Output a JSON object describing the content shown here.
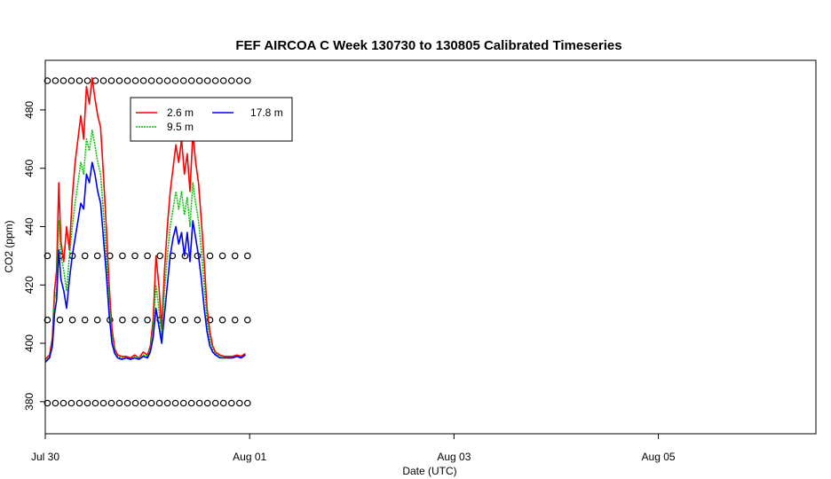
{
  "chart_data": {
    "type": "line",
    "title": "FEF AIRCOA C  Week 130730 to 130805  Calibrated Timeseries",
    "xlabel": "Date (UTC)",
    "ylabel": "CO2 (ppm)",
    "xlim": [
      "2013-07-30T00:00",
      "2013-08-06T13:00"
    ],
    "ylim": [
      369,
      497
    ],
    "x_ticks": [
      {
        "label": "Jul 30",
        "date": "2013-07-30"
      },
      {
        "label": "Aug 01",
        "date": "2013-08-01"
      },
      {
        "label": "Aug 03",
        "date": "2013-08-03"
      },
      {
        "label": "Aug 05",
        "date": "2013-08-05"
      }
    ],
    "y_ticks": [
      380,
      400,
      420,
      440,
      460,
      480
    ],
    "legend_position": "top-left",
    "series": [
      {
        "name": "2.6 m",
        "color": "#ff0000",
        "points": [
          [
            "2013-07-30T00:00",
            394.5
          ],
          [
            "2013-07-30T01:00",
            396
          ],
          [
            "2013-07-30T01:40",
            402
          ],
          [
            "2013-07-30T02:10",
            418
          ],
          [
            "2013-07-30T02:40",
            425
          ],
          [
            "2013-07-30T03:10",
            455
          ],
          [
            "2013-07-30T03:40",
            435
          ],
          [
            "2013-07-30T04:20",
            428
          ],
          [
            "2013-07-30T05:00",
            440
          ],
          [
            "2013-07-30T05:40",
            432
          ],
          [
            "2013-07-30T06:20",
            450
          ],
          [
            "2013-07-30T07:00",
            462
          ],
          [
            "2013-07-30T07:40",
            470
          ],
          [
            "2013-07-30T08:20",
            478
          ],
          [
            "2013-07-30T09:00",
            470
          ],
          [
            "2013-07-30T09:40",
            488
          ],
          [
            "2013-07-30T10:20",
            482
          ],
          [
            "2013-07-30T11:00",
            491
          ],
          [
            "2013-07-30T11:40",
            484
          ],
          [
            "2013-07-30T12:20",
            478
          ],
          [
            "2013-07-30T13:00",
            474
          ],
          [
            "2013-07-30T13:40",
            458
          ],
          [
            "2013-07-30T14:20",
            440
          ],
          [
            "2013-07-30T15:00",
            420
          ],
          [
            "2013-07-30T15:40",
            405
          ],
          [
            "2013-07-30T16:20",
            398
          ],
          [
            "2013-07-30T17:00",
            396
          ],
          [
            "2013-07-30T18:00",
            395.5
          ],
          [
            "2013-07-30T19:00",
            395.5
          ],
          [
            "2013-07-30T20:00",
            395
          ],
          [
            "2013-07-30T21:00",
            396
          ],
          [
            "2013-07-30T22:00",
            395
          ],
          [
            "2013-07-30T23:00",
            397
          ],
          [
            "2013-07-31T00:00",
            396
          ],
          [
            "2013-07-31T00:40",
            399
          ],
          [
            "2013-07-31T01:20",
            408
          ],
          [
            "2013-07-31T02:00",
            430
          ],
          [
            "2013-07-31T02:40",
            420
          ],
          [
            "2013-07-31T03:20",
            405
          ],
          [
            "2013-07-31T04:00",
            425
          ],
          [
            "2013-07-31T04:40",
            440
          ],
          [
            "2013-07-31T05:20",
            452
          ],
          [
            "2013-07-31T06:00",
            460
          ],
          [
            "2013-07-31T06:40",
            468
          ],
          [
            "2013-07-31T07:20",
            462
          ],
          [
            "2013-07-31T08:00",
            470
          ],
          [
            "2013-07-31T08:40",
            458
          ],
          [
            "2013-07-31T09:20",
            465
          ],
          [
            "2013-07-31T10:00",
            452
          ],
          [
            "2013-07-31T10:40",
            472
          ],
          [
            "2013-07-31T11:20",
            462
          ],
          [
            "2013-07-31T12:00",
            455
          ],
          [
            "2013-07-31T12:40",
            442
          ],
          [
            "2013-07-31T13:20",
            428
          ],
          [
            "2013-07-31T14:00",
            412
          ],
          [
            "2013-07-31T14:40",
            404
          ],
          [
            "2013-07-31T15:20",
            399
          ],
          [
            "2013-07-31T16:00",
            397
          ],
          [
            "2013-07-31T17:00",
            396
          ],
          [
            "2013-07-31T18:00",
            395.5
          ],
          [
            "2013-07-31T19:00",
            395.5
          ],
          [
            "2013-07-31T20:00",
            395.5
          ],
          [
            "2013-07-31T21:00",
            396
          ],
          [
            "2013-07-31T22:00",
            395.5
          ],
          [
            "2013-07-31T23:00",
            396.5
          ]
        ]
      },
      {
        "name": "9.5 m",
        "color": "#00c000",
        "points": [
          [
            "2013-07-30T00:00",
            394
          ],
          [
            "2013-07-30T01:00",
            395.5
          ],
          [
            "2013-07-30T01:40",
            400
          ],
          [
            "2013-07-30T02:10",
            415
          ],
          [
            "2013-07-30T02:40",
            418
          ],
          [
            "2013-07-30T03:10",
            442
          ],
          [
            "2013-07-30T03:40",
            430
          ],
          [
            "2013-07-30T04:20",
            425
          ],
          [
            "2013-07-30T05:00",
            418
          ],
          [
            "2013-07-30T05:40",
            430
          ],
          [
            "2013-07-30T06:20",
            440
          ],
          [
            "2013-07-30T07:00",
            448
          ],
          [
            "2013-07-30T07:40",
            455
          ],
          [
            "2013-07-30T08:20",
            462
          ],
          [
            "2013-07-30T09:00",
            458
          ],
          [
            "2013-07-30T09:40",
            470
          ],
          [
            "2013-07-30T10:20",
            466
          ],
          [
            "2013-07-30T11:00",
            473
          ],
          [
            "2013-07-30T11:40",
            468
          ],
          [
            "2013-07-30T12:20",
            462
          ],
          [
            "2013-07-30T13:00",
            458
          ],
          [
            "2013-07-30T13:40",
            445
          ],
          [
            "2013-07-30T14:20",
            430
          ],
          [
            "2013-07-30T15:00",
            415
          ],
          [
            "2013-07-30T15:40",
            402
          ],
          [
            "2013-07-30T16:20",
            397
          ],
          [
            "2013-07-30T17:00",
            395.5
          ],
          [
            "2013-07-30T18:00",
            395
          ],
          [
            "2013-07-30T19:00",
            395
          ],
          [
            "2013-07-30T20:00",
            394.5
          ],
          [
            "2013-07-30T21:00",
            395.5
          ],
          [
            "2013-07-30T22:00",
            395
          ],
          [
            "2013-07-30T23:00",
            396
          ],
          [
            "2013-07-31T00:00",
            395.5
          ],
          [
            "2013-07-31T00:40",
            398
          ],
          [
            "2013-07-31T01:20",
            405
          ],
          [
            "2013-07-31T02:00",
            420
          ],
          [
            "2013-07-31T02:40",
            412
          ],
          [
            "2013-07-31T03:20",
            402
          ],
          [
            "2013-07-31T04:00",
            418
          ],
          [
            "2013-07-31T04:40",
            430
          ],
          [
            "2013-07-31T05:20",
            440
          ],
          [
            "2013-07-31T06:00",
            446
          ],
          [
            "2013-07-31T06:40",
            452
          ],
          [
            "2013-07-31T07:20",
            446
          ],
          [
            "2013-07-31T08:00",
            452
          ],
          [
            "2013-07-31T08:40",
            444
          ],
          [
            "2013-07-31T09:20",
            450
          ],
          [
            "2013-07-31T10:00",
            440
          ],
          [
            "2013-07-31T10:40",
            455
          ],
          [
            "2013-07-31T11:20",
            448
          ],
          [
            "2013-07-31T12:00",
            442
          ],
          [
            "2013-07-31T12:40",
            432
          ],
          [
            "2013-07-31T13:20",
            420
          ],
          [
            "2013-07-31T14:00",
            408
          ],
          [
            "2013-07-31T14:40",
            401
          ],
          [
            "2013-07-31T15:20",
            398
          ],
          [
            "2013-07-31T16:00",
            396.5
          ],
          [
            "2013-07-31T17:00",
            395.5
          ],
          [
            "2013-07-31T18:00",
            395
          ],
          [
            "2013-07-31T19:00",
            395
          ],
          [
            "2013-07-31T20:00",
            395
          ],
          [
            "2013-07-31T21:00",
            395.5
          ],
          [
            "2013-07-31T22:00",
            395
          ],
          [
            "2013-07-31T23:00",
            396
          ]
        ]
      },
      {
        "name": "17.8 m",
        "color": "#0000ff",
        "points": [
          [
            "2013-07-30T00:00",
            393.5
          ],
          [
            "2013-07-30T01:00",
            395
          ],
          [
            "2013-07-30T01:40",
            399
          ],
          [
            "2013-07-30T02:10",
            410
          ],
          [
            "2013-07-30T02:40",
            415
          ],
          [
            "2013-07-30T03:10",
            432
          ],
          [
            "2013-07-30T03:40",
            422
          ],
          [
            "2013-07-30T04:20",
            418
          ],
          [
            "2013-07-30T05:00",
            412
          ],
          [
            "2013-07-30T05:40",
            422
          ],
          [
            "2013-07-30T06:20",
            430
          ],
          [
            "2013-07-30T07:00",
            436
          ],
          [
            "2013-07-30T07:40",
            442
          ],
          [
            "2013-07-30T08:20",
            448
          ],
          [
            "2013-07-30T09:00",
            446
          ],
          [
            "2013-07-30T09:40",
            458
          ],
          [
            "2013-07-30T10:20",
            455
          ],
          [
            "2013-07-30T11:00",
            462
          ],
          [
            "2013-07-30T11:40",
            458
          ],
          [
            "2013-07-30T12:20",
            452
          ],
          [
            "2013-07-30T13:00",
            448
          ],
          [
            "2013-07-30T13:40",
            436
          ],
          [
            "2013-07-30T14:20",
            424
          ],
          [
            "2013-07-30T15:00",
            410
          ],
          [
            "2013-07-30T15:40",
            400
          ],
          [
            "2013-07-30T16:20",
            396.5
          ],
          [
            "2013-07-30T17:00",
            395
          ],
          [
            "2013-07-30T18:00",
            394.5
          ],
          [
            "2013-07-30T19:00",
            395
          ],
          [
            "2013-07-30T20:00",
            394.5
          ],
          [
            "2013-07-30T21:00",
            395
          ],
          [
            "2013-07-30T22:00",
            394.5
          ],
          [
            "2013-07-30T23:00",
            395.5
          ],
          [
            "2013-07-31T00:00",
            395
          ],
          [
            "2013-07-31T00:40",
            397
          ],
          [
            "2013-07-31T01:20",
            402
          ],
          [
            "2013-07-31T02:00",
            412
          ],
          [
            "2013-07-31T02:40",
            406
          ],
          [
            "2013-07-31T03:20",
            400
          ],
          [
            "2013-07-31T04:00",
            410
          ],
          [
            "2013-07-31T04:40",
            420
          ],
          [
            "2013-07-31T05:20",
            430
          ],
          [
            "2013-07-31T06:00",
            436
          ],
          [
            "2013-07-31T06:40",
            440
          ],
          [
            "2013-07-31T07:20",
            434
          ],
          [
            "2013-07-31T08:00",
            438
          ],
          [
            "2013-07-31T08:40",
            430
          ],
          [
            "2013-07-31T09:20",
            438
          ],
          [
            "2013-07-31T10:00",
            428
          ],
          [
            "2013-07-31T10:40",
            442
          ],
          [
            "2013-07-31T11:20",
            436
          ],
          [
            "2013-07-31T12:00",
            430
          ],
          [
            "2013-07-31T12:40",
            422
          ],
          [
            "2013-07-31T13:20",
            412
          ],
          [
            "2013-07-31T14:00",
            404
          ],
          [
            "2013-07-31T14:40",
            399
          ],
          [
            "2013-07-31T15:20",
            397
          ],
          [
            "2013-07-31T16:00",
            396
          ],
          [
            "2013-07-31T17:00",
            395
          ],
          [
            "2013-07-31T18:00",
            395
          ],
          [
            "2013-07-31T19:00",
            395
          ],
          [
            "2013-07-31T20:00",
            395
          ],
          [
            "2013-07-31T21:00",
            395.5
          ],
          [
            "2013-07-31T22:00",
            395
          ],
          [
            "2013-07-31T23:00",
            396
          ]
        ]
      }
    ],
    "calibration_markers": {
      "symbol": "open-circle",
      "color": "#000000",
      "x_range": [
        "2013-07-30T00:30",
        "2013-07-31T23:30"
      ],
      "levels": [
        {
          "y": 490,
          "count": 26
        },
        {
          "y": 430,
          "count": 17
        },
        {
          "y": 408,
          "count": 17
        },
        {
          "y": 379.5,
          "count": 26
        }
      ]
    }
  }
}
